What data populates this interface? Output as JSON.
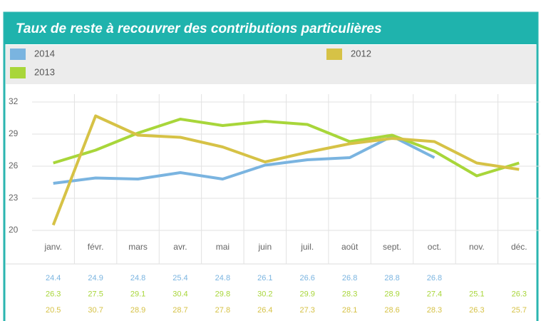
{
  "chart_data": {
    "type": "line",
    "title": "Taux de reste à recouvrer des contributions particulières",
    "categories": [
      "janv.",
      "févr.",
      "mars",
      "avr.",
      "mai",
      "juin",
      "juil.",
      "août",
      "sept.",
      "oct.",
      "nov.",
      "déc."
    ],
    "series": [
      {
        "name": "2014",
        "color": "#7ab4e0",
        "values": [
          24.4,
          24.9,
          24.8,
          25.4,
          24.8,
          26.1,
          26.6,
          26.8,
          28.8,
          26.8,
          null,
          null
        ]
      },
      {
        "name": "2013",
        "color": "#a8d63a",
        "values": [
          26.3,
          27.5,
          29.1,
          30.4,
          29.8,
          30.2,
          29.9,
          28.3,
          28.9,
          27.4,
          25.1,
          26.3
        ]
      },
      {
        "name": "2012",
        "color": "#d6c246",
        "values": [
          20.5,
          30.7,
          28.9,
          28.7,
          27.8,
          26.4,
          27.3,
          28.1,
          28.6,
          28.3,
          26.3,
          25.7
        ]
      }
    ],
    "ylim": [
      20,
      32
    ],
    "yticks": [
      20,
      23,
      26,
      29,
      32
    ],
    "grid": true
  }
}
